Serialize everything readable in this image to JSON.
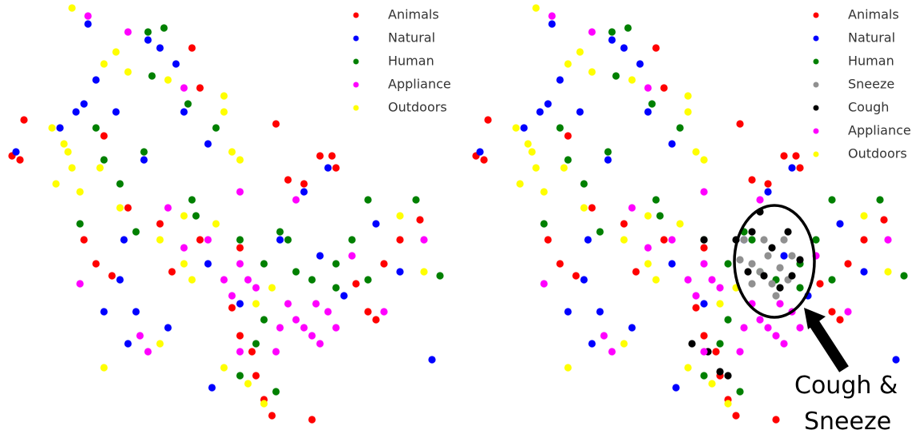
{
  "chart_data": [
    {
      "type": "scatter",
      "legend": "upper right",
      "xlim": [
        0,
        570
      ],
      "ylim": [
        548,
        0
      ],
      "series": [
        {
          "name": "Animals",
          "color": "#ff0000",
          "x": [
            30,
            15,
            25,
            105,
            120,
            140,
            215,
            250,
            300,
            345,
            400,
            415,
            420,
            380,
            360,
            460,
            470,
            500,
            525,
            480,
            300,
            320,
            330,
            340,
            315,
            200,
            160,
            130,
            240,
            250,
            290,
            445,
            390
          ],
          "y": [
            150,
            195,
            200,
            300,
            330,
            345,
            340,
            300,
            310,
            155,
            195,
            195,
            210,
            230,
            225,
            390,
            400,
            300,
            275,
            330,
            420,
            470,
            500,
            520,
            440,
            280,
            260,
            170,
            60,
            110,
            385,
            355,
            525
          ]
        },
        {
          "name": "Natural",
          "color": "#0000ff",
          "x": [
            20,
            75,
            95,
            105,
            110,
            185,
            200,
            220,
            230,
            260,
            150,
            170,
            210,
            130,
            160,
            265,
            380,
            410,
            350,
            400,
            430,
            470,
            500,
            540,
            260,
            300,
            145,
            120,
            180,
            155
          ],
          "y": [
            190,
            160,
            140,
            130,
            30,
            50,
            60,
            80,
            140,
            180,
            350,
            390,
            410,
            390,
            430,
            485,
            240,
            210,
            300,
            320,
            370,
            280,
            340,
            450,
            330,
            380,
            140,
            100,
            200,
            300
          ]
        },
        {
          "name": "Human",
          "color": "#008000",
          "x": [
            185,
            205,
            190,
            235,
            270,
            180,
            150,
            170,
            240,
            245,
            300,
            330,
            360,
            370,
            390,
            350,
            420,
            440,
            460,
            520,
            330,
            300,
            320,
            345,
            420,
            460,
            550,
            120,
            130,
            100
          ],
          "y": [
            40,
            35,
            95,
            130,
            160,
            190,
            230,
            290,
            250,
            270,
            300,
            330,
            300,
            340,
            350,
            290,
            330,
            300,
            250,
            250,
            400,
            470,
            430,
            490,
            360,
            350,
            345,
            160,
            200,
            280
          ]
        },
        {
          "name": "Appliance",
          "color": "#ff00ff",
          "x": [
            110,
            160,
            230,
            300,
            310,
            290,
            320,
            360,
            370,
            380,
            390,
            400,
            350,
            410,
            440,
            280,
            300,
            210,
            230,
            175,
            185,
            300,
            100,
            370,
            345,
            480,
            530,
            420,
            395,
            260
          ],
          "y": [
            20,
            40,
            110,
            330,
            350,
            370,
            360,
            380,
            400,
            410,
            420,
            430,
            410,
            390,
            320,
            350,
            240,
            260,
            310,
            420,
            440,
            440,
            355,
            250,
            440,
            390,
            300,
            410,
            380,
            300
          ]
        },
        {
          "name": "Outdoors",
          "color": "#ffff00",
          "x": [
            65,
            80,
            90,
            70,
            85,
            100,
            125,
            150,
            200,
            230,
            240,
            130,
            160,
            210,
            280,
            280,
            290,
            300,
            230,
            270,
            320,
            340,
            200,
            130,
            280,
            330,
            500,
            530,
            310,
            90,
            145
          ],
          "y": [
            160,
            180,
            210,
            230,
            190,
            240,
            210,
            260,
            300,
            330,
            350,
            80,
            90,
            100,
            120,
            140,
            190,
            200,
            270,
            280,
            380,
            360,
            430,
            460,
            460,
            505,
            270,
            340,
            480,
            10,
            65
          ]
        }
      ]
    },
    {
      "type": "scatter",
      "legend": "upper right",
      "xlim": [
        0,
        565
      ],
      "ylim": [
        548,
        0
      ],
      "annotation": [
        "Cough &",
        "Sneeze"
      ],
      "series": [
        {
          "name": "Animals",
          "color": "#ff0000",
          "x": [
            30,
            15,
            25,
            105,
            120,
            140,
            215,
            250,
            300,
            345,
            400,
            415,
            420,
            380,
            360,
            460,
            470,
            500,
            525,
            480,
            300,
            320,
            330,
            340,
            315,
            200,
            160,
            130,
            240,
            250,
            290,
            445,
            390
          ],
          "y": [
            150,
            195,
            200,
            300,
            330,
            345,
            340,
            300,
            310,
            155,
            195,
            195,
            210,
            230,
            225,
            390,
            400,
            300,
            275,
            330,
            420,
            470,
            500,
            520,
            440,
            280,
            260,
            170,
            60,
            110,
            385,
            355,
            525
          ]
        },
        {
          "name": "Natural",
          "color": "#0000ff",
          "x": [
            20,
            75,
            95,
            105,
            110,
            185,
            200,
            220,
            230,
            260,
            150,
            170,
            210,
            130,
            160,
            265,
            380,
            410,
            350,
            400,
            430,
            470,
            500,
            540,
            260,
            300,
            145,
            120,
            180,
            155
          ],
          "y": [
            190,
            160,
            140,
            130,
            30,
            50,
            60,
            80,
            140,
            180,
            350,
            390,
            410,
            390,
            430,
            485,
            240,
            210,
            300,
            320,
            370,
            280,
            340,
            450,
            330,
            380,
            140,
            100,
            200,
            300
          ]
        },
        {
          "name": "Human",
          "color": "#008000",
          "x": [
            185,
            205,
            190,
            235,
            270,
            180,
            150,
            170,
            240,
            245,
            300,
            330,
            360,
            370,
            390,
            350,
            420,
            440,
            460,
            520,
            330,
            300,
            320,
            345,
            420,
            460,
            550,
            120,
            130,
            100
          ],
          "y": [
            40,
            35,
            95,
            130,
            160,
            190,
            230,
            290,
            250,
            270,
            300,
            330,
            300,
            340,
            350,
            290,
            330,
            300,
            250,
            250,
            400,
            470,
            430,
            490,
            360,
            350,
            345,
            160,
            200,
            280
          ]
        },
        {
          "name": "Sneeze",
          "color": "#909090",
          "x": [
            345,
            360,
            370,
            380,
            385,
            395,
            405,
            375,
            390,
            360,
            410,
            350,
            400
          ],
          "y": [
            325,
            330,
            340,
            320,
            355,
            335,
            350,
            300,
            370,
            355,
            320,
            300,
            300
          ]
        },
        {
          "name": "Cough",
          "color": "#000000",
          "x": [
            340,
            355,
            375,
            385,
            395,
            410,
            420,
            360,
            370,
            300,
            285,
            305,
            320,
            330,
            405
          ],
          "y": [
            300,
            340,
            345,
            310,
            360,
            345,
            325,
            290,
            265,
            300,
            430,
            440,
            465,
            470,
            290
          ]
        },
        {
          "name": "Appliance",
          "color": "#ff00ff",
          "x": [
            110,
            160,
            230,
            300,
            310,
            290,
            320,
            360,
            370,
            380,
            390,
            400,
            350,
            410,
            440,
            280,
            300,
            210,
            230,
            175,
            185,
            300,
            100,
            370,
            345,
            480,
            530,
            420,
            395,
            260
          ],
          "y": [
            20,
            40,
            110,
            330,
            350,
            370,
            360,
            380,
            400,
            410,
            420,
            430,
            410,
            390,
            320,
            350,
            240,
            260,
            310,
            420,
            440,
            440,
            355,
            250,
            440,
            390,
            300,
            410,
            380,
            300
          ]
        },
        {
          "name": "Outdoors",
          "color": "#ffff00",
          "x": [
            65,
            80,
            90,
            70,
            85,
            100,
            125,
            150,
            200,
            230,
            240,
            130,
            160,
            210,
            280,
            280,
            290,
            300,
            230,
            270,
            320,
            340,
            200,
            130,
            280,
            330,
            500,
            530,
            310,
            90,
            145
          ],
          "y": [
            160,
            180,
            210,
            230,
            190,
            240,
            210,
            260,
            300,
            330,
            350,
            80,
            90,
            100,
            120,
            140,
            190,
            200,
            270,
            280,
            380,
            360,
            430,
            460,
            460,
            505,
            270,
            340,
            480,
            10,
            65
          ]
        }
      ]
    }
  ]
}
